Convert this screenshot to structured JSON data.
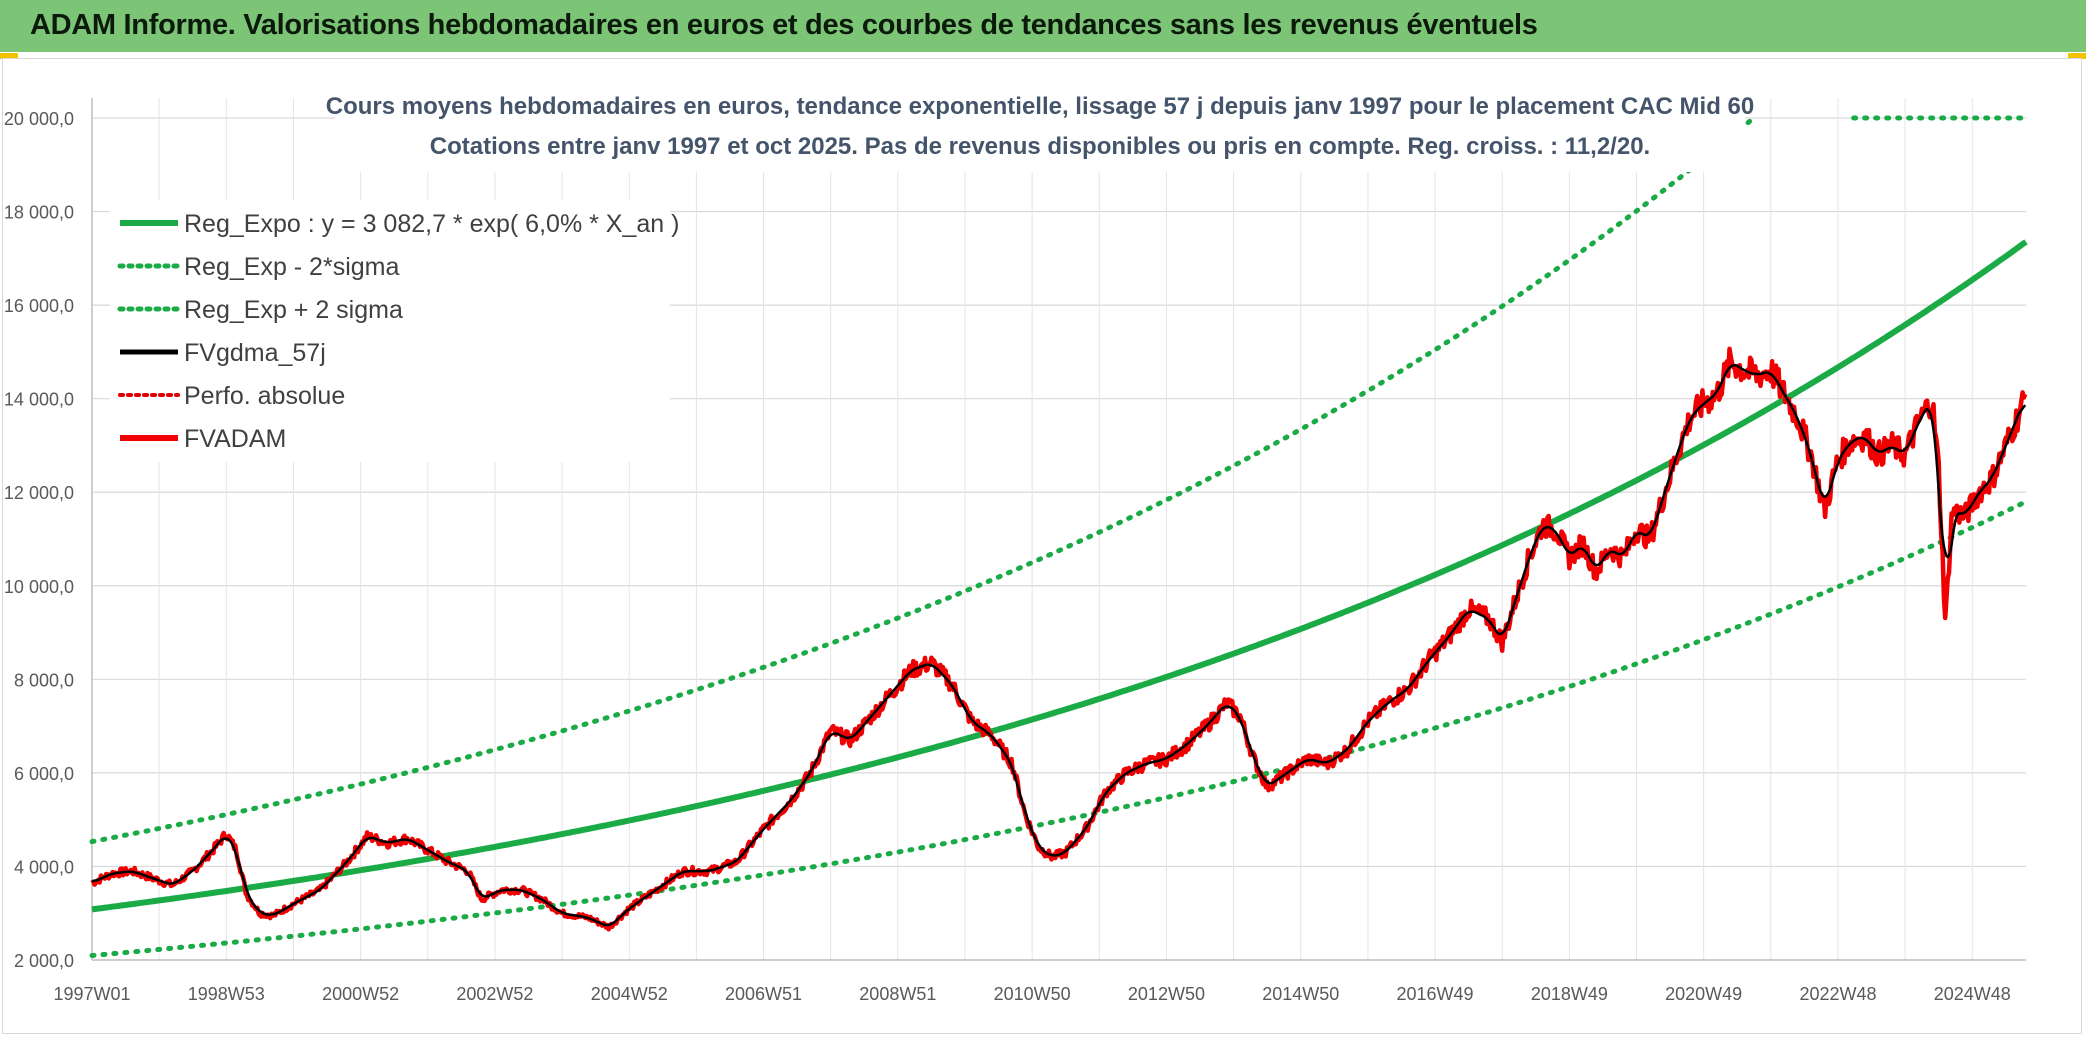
{
  "header": {
    "title": "ADAM Informe. Valorisations hebdomadaires en euros et des courbes de tendances sans les revenus éventuels"
  },
  "chart_data": {
    "type": "line",
    "title": "Cours moyens hebdomadaires en euros, tendance exponentielle, lissage 57 j depuis janv 1997 pour le placement CAC Mid 60",
    "subtitle": "Cotations entre janv 1997 et oct 2025. Pas de revenus disponibles ou pris en compte. Reg. croiss. : 11,2/20.",
    "ylim": [
      2000,
      20000
    ],
    "xlim": [
      0,
      28.8
    ],
    "y_ticks": [
      2000,
      4000,
      6000,
      8000,
      10000,
      12000,
      14000,
      16000,
      18000,
      20000
    ],
    "y_tick_labels": [
      "2 000,0",
      "4 000,0",
      "6 000,0",
      "8 000,0",
      "10 000,0",
      "12 000,0",
      "14 000,0",
      "16 000,0",
      "18 000,0",
      "20 000,0"
    ],
    "x_ticks": [
      0,
      2,
      4,
      6,
      8,
      10,
      12,
      14,
      16,
      18,
      20,
      22,
      24,
      26,
      28
    ],
    "x_tick_labels": [
      "1997W01",
      "1998W53",
      "2000W52",
      "2002W52",
      "2004W52",
      "2006W51",
      "2008W51",
      "2010W50",
      "2012W50",
      "2014W50",
      "2016W49",
      "2018W49",
      "2020W49",
      "2022W48",
      "2024W48"
    ],
    "grid": true,
    "legend_position": "top-left",
    "colors": {
      "reg_expo": "#1aaa46",
      "fvgdma": "#000000",
      "perfo": "#e00000",
      "fvadam": "#f00000"
    },
    "trend": {
      "a": 3082.7,
      "rate": 0.06,
      "sigma_low_factor": 0.68,
      "sigma_high_factor": 1.47
    },
    "series": [
      {
        "name": "Reg_Expo : y = 3 082,7 * exp( 6,0% *  X_an )",
        "style": "solid-green"
      },
      {
        "name": "Reg_Exp - 2*sigma",
        "style": "dotted-green"
      },
      {
        "name": "Reg_Exp + 2 sigma",
        "style": "dotted-green"
      },
      {
        "name": "FVgdma_57j",
        "style": "solid-black"
      },
      {
        "name": "Perfo. absolue",
        "style": "dotted-red"
      },
      {
        "name": "FVADAM",
        "style": "solid-red"
      }
    ],
    "fvadam_anchors": [
      [
        0.0,
        3650
      ],
      [
        0.3,
        3850
      ],
      [
        0.6,
        3900
      ],
      [
        0.9,
        3750
      ],
      [
        1.2,
        3600
      ],
      [
        1.5,
        3900
      ],
      [
        1.8,
        4350
      ],
      [
        2.0,
        4700
      ],
      [
        2.15,
        4350
      ],
      [
        2.3,
        3400
      ],
      [
        2.5,
        3000
      ],
      [
        2.7,
        2950
      ],
      [
        3.0,
        3200
      ],
      [
        3.4,
        3500
      ],
      [
        3.8,
        4100
      ],
      [
        4.1,
        4650
      ],
      [
        4.4,
        4500
      ],
      [
        4.7,
        4600
      ],
      [
        5.0,
        4350
      ],
      [
        5.3,
        4100
      ],
      [
        5.6,
        3900
      ],
      [
        5.8,
        3300
      ],
      [
        6.1,
        3500
      ],
      [
        6.4,
        3500
      ],
      [
        6.7,
        3300
      ],
      [
        7.0,
        3000
      ],
      [
        7.4,
        2900
      ],
      [
        7.7,
        2700
      ],
      [
        8.0,
        3100
      ],
      [
        8.4,
        3500
      ],
      [
        8.8,
        3900
      ],
      [
        9.2,
        3900
      ],
      [
        9.6,
        4100
      ],
      [
        10.0,
        4800
      ],
      [
        10.4,
        5400
      ],
      [
        10.7,
        6000
      ],
      [
        11.0,
        6900
      ],
      [
        11.3,
        6700
      ],
      [
        11.6,
        7200
      ],
      [
        11.9,
        7700
      ],
      [
        12.2,
        8200
      ],
      [
        12.5,
        8350
      ],
      [
        12.8,
        7900
      ],
      [
        13.1,
        7100
      ],
      [
        13.4,
        6800
      ],
      [
        13.7,
        6200
      ],
      [
        13.9,
        5100
      ],
      [
        14.1,
        4400
      ],
      [
        14.3,
        4200
      ],
      [
        14.5,
        4300
      ],
      [
        14.8,
        4800
      ],
      [
        15.1,
        5600
      ],
      [
        15.4,
        6000
      ],
      [
        15.7,
        6200
      ],
      [
        16.0,
        6300
      ],
      [
        16.3,
        6600
      ],
      [
        16.6,
        7000
      ],
      [
        16.9,
        7500
      ],
      [
        17.1,
        7200
      ],
      [
        17.3,
        6300
      ],
      [
        17.5,
        5700
      ],
      [
        17.8,
        6000
      ],
      [
        18.1,
        6300
      ],
      [
        18.4,
        6200
      ],
      [
        18.7,
        6500
      ],
      [
        19.0,
        7100
      ],
      [
        19.3,
        7500
      ],
      [
        19.6,
        7800
      ],
      [
        19.9,
        8400
      ],
      [
        20.2,
        8900
      ],
      [
        20.5,
        9500
      ],
      [
        20.8,
        9300
      ],
      [
        21.0,
        8800
      ],
      [
        21.2,
        9700
      ],
      [
        21.4,
        10600
      ],
      [
        21.6,
        11300
      ],
      [
        21.8,
        11200
      ],
      [
        22.0,
        10600
      ],
      [
        22.2,
        10900
      ],
      [
        22.4,
        10300
      ],
      [
        22.6,
        10800
      ],
      [
        22.8,
        10600
      ],
      [
        23.0,
        11200
      ],
      [
        23.2,
        11000
      ],
      [
        23.4,
        11900
      ],
      [
        23.6,
        12800
      ],
      [
        23.8,
        13600
      ],
      [
        24.0,
        13900
      ],
      [
        24.2,
        14100
      ],
      [
        24.4,
        14800
      ],
      [
        24.6,
        14600
      ],
      [
        24.8,
        14500
      ],
      [
        25.0,
        14600
      ],
      [
        25.2,
        14100
      ],
      [
        25.4,
        13600
      ],
      [
        25.6,
        12800
      ],
      [
        25.8,
        11600
      ],
      [
        26.0,
        12700
      ],
      [
        26.2,
        13100
      ],
      [
        26.4,
        13200
      ],
      [
        26.6,
        12800
      ],
      [
        26.8,
        13000
      ],
      [
        27.0,
        12800
      ],
      [
        27.2,
        13500
      ],
      [
        27.4,
        14000
      ],
      [
        27.5,
        12500
      ],
      [
        27.6,
        9200
      ],
      [
        27.7,
        11600
      ],
      [
        27.9,
        11500
      ],
      [
        28.1,
        12000
      ],
      [
        28.3,
        12300
      ],
      [
        28.5,
        13000
      ],
      [
        28.7,
        13700
      ],
      [
        28.8,
        14100
      ]
    ]
  }
}
